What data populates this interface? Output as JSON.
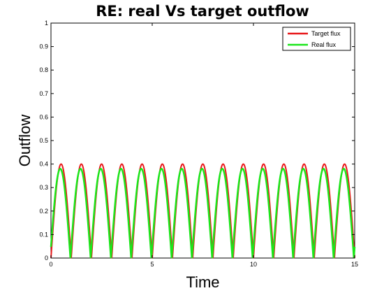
{
  "chart_data": {
    "type": "line",
    "title": "RE: real Vs target outflow",
    "xlabel": "Time",
    "ylabel": "Outflow",
    "xlim": [
      0,
      15
    ],
    "ylim": [
      0,
      1
    ],
    "xticks": [
      "0",
      "5",
      "10",
      "15"
    ],
    "yticks": [
      "0",
      "0.1",
      "0.2",
      "0.3",
      "0.4",
      "0.5",
      "0.6",
      "0.7",
      "0.8",
      "0.9",
      "1"
    ],
    "grid": false,
    "legend_position": "top-right",
    "period": 1,
    "series": [
      {
        "name": "Target flux",
        "color": "#e8191b",
        "peak": 0.4,
        "phase": 0.0,
        "shape": "abs-sine"
      },
      {
        "name": "Real flux",
        "color": "#1be61b",
        "peak": 0.38,
        "phase": -0.04,
        "shape": "abs-sine"
      }
    ]
  }
}
